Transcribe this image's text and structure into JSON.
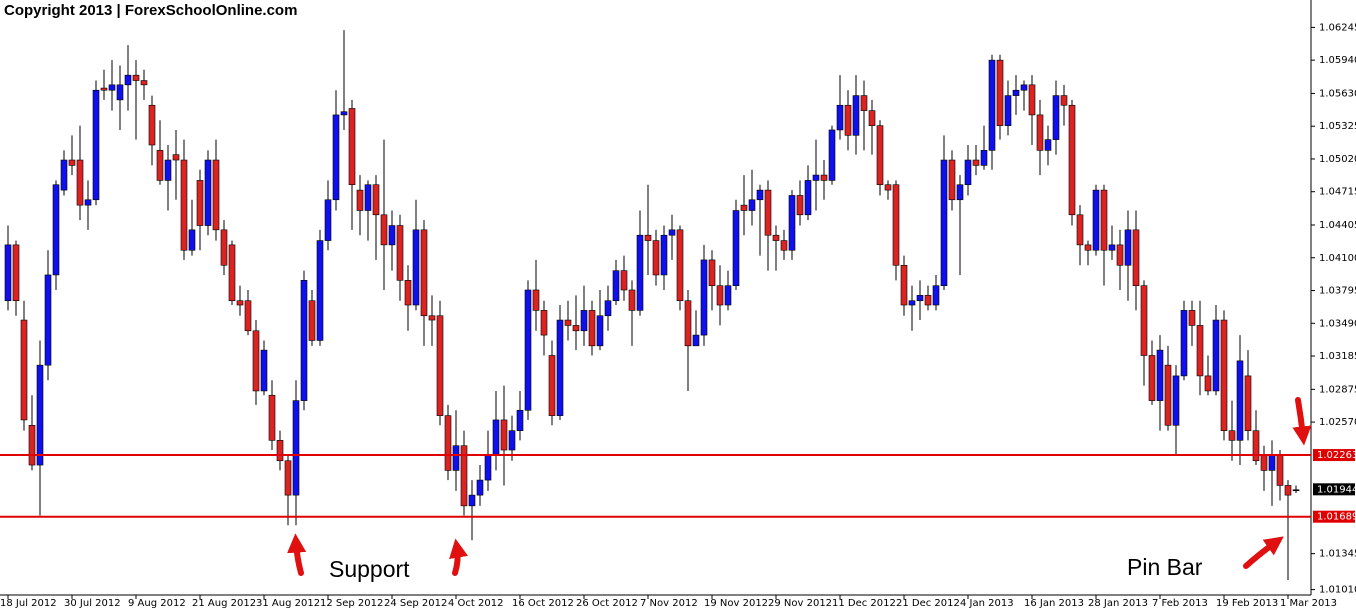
{
  "chart_data": {
    "type": "candlestick",
    "title": "Copyright 2013 | ForexSchoolOnline.com",
    "annotations": [
      "Support",
      "Pin Bar"
    ],
    "bull_color": "#1010ee",
    "bear_color": "#dd2222",
    "level_color": "#e00000",
    "ylim": [
      1.0096,
      1.065
    ],
    "yticks": [
      1.06245,
      {
        "value": 1.0594,
        "label": "1.05940"
      },
      {
        "value": 1.0563,
        "label": "1.05630"
      },
      1.05325,
      {
        "value": 1.0502,
        "label": "1.05020"
      },
      1.04715,
      1.04405,
      {
        "value": 1.041,
        "label": "1.04100"
      },
      1.03795,
      {
        "value": 1.0349,
        "label": "1.03490"
      },
      1.03185,
      1.02875,
      {
        "value": 1.0257,
        "label": "1.02570"
      },
      1.01345,
      {
        "value": 1.0101,
        "label": "1.01010"
      }
    ],
    "levels": [
      1.02263,
      1.01689
    ],
    "last_price": 1.01944,
    "categories": [
      "18 Jul 2012",
      null,
      null,
      null,
      null,
      null,
      null,
      null,
      "30 Jul 2012",
      null,
      null,
      null,
      null,
      null,
      null,
      null,
      "9 Aug 2012",
      null,
      null,
      null,
      null,
      null,
      null,
      null,
      "21 Aug 2012",
      null,
      null,
      null,
      null,
      null,
      null,
      null,
      "31 Aug 2012",
      null,
      null,
      null,
      null,
      null,
      null,
      null,
      "12 Sep 2012",
      null,
      null,
      null,
      null,
      null,
      null,
      null,
      "24 Sep 2012",
      null,
      null,
      null,
      null,
      null,
      null,
      null,
      "4 Oct 2012",
      null,
      null,
      null,
      null,
      null,
      null,
      null,
      "16 Oct 2012",
      null,
      null,
      null,
      null,
      null,
      null,
      null,
      "26 Oct 2012",
      null,
      null,
      null,
      null,
      null,
      null,
      null,
      "7 Nov 2012",
      null,
      null,
      null,
      null,
      null,
      null,
      null,
      "19 Nov 2012",
      null,
      null,
      null,
      null,
      null,
      null,
      null,
      "29 Nov 2012",
      null,
      null,
      null,
      null,
      null,
      null,
      null,
      "11 Dec 2012",
      null,
      null,
      null,
      null,
      null,
      null,
      null,
      "21 Dec 2012",
      null,
      null,
      null,
      null,
      null,
      null,
      null,
      "4 Jan 2013",
      null,
      null,
      null,
      null,
      null,
      null,
      null,
      "16 Jan 2013",
      null,
      null,
      null,
      null,
      null,
      null,
      null,
      "28 Jan 2013",
      null,
      null,
      null,
      null,
      null,
      null,
      null,
      "7 Feb 2013",
      null,
      null,
      null,
      null,
      null,
      null,
      null,
      "19 Feb 2013",
      null,
      null,
      null,
      null,
      null,
      null,
      null,
      "1 Mar 2013",
      null
    ],
    "open": [
      1.037,
      1.0422,
      1.0352,
      1.0254,
      1.0217,
      1.031,
      1.0394,
      1.0473,
      1.0501,
      1.0501,
      1.0459,
      1.0464,
      1.0568,
      1.0566,
      1.0557,
      1.0571,
      1.058,
      1.0575,
      1.0552,
      1.051,
      1.0482,
      1.0506,
      1.0501,
      1.0417,
      1.0482,
      1.044,
      1.0501,
      1.0436,
      1.0422,
      1.037,
      1.037,
      1.0342,
      1.0286,
      1.0282,
      1.024,
      1.0221,
      1.0189,
      1.0277,
      1.037,
      1.0333,
      1.0426,
      1.0464,
      1.0543,
      1.0549,
      1.0473,
      1.0454,
      1.0478,
      1.045,
      1.0422,
      1.044,
      1.0389,
      1.0366,
      1.0436,
      1.0356,
      1.0356,
      1.0263,
      1.0212,
      1.0235,
      1.0179,
      1.0189,
      1.0203,
      1.0226,
      1.0259,
      1.0231,
      1.0249,
      1.0268,
      1.038,
      1.0361,
      1.0319,
      1.0263,
      1.0352,
      1.0347,
      1.0342,
      1.0361,
      1.0328,
      1.0356,
      1.037,
      1.0398,
      1.038,
      1.0361,
      1.0431,
      1.0426,
      1.0394,
      1.0431,
      1.0436,
      1.037,
      1.0328,
      1.0338,
      1.0408,
      1.0384,
      1.0366,
      1.0384,
      1.0459,
      1.0454,
      1.0464,
      1.0473,
      1.0431,
      1.0426,
      1.0417,
      1.0468,
      1.045,
      1.0482,
      1.0487,
      1.0482,
      1.0529,
      1.0552,
      1.0524,
      1.0561,
      1.0547,
      1.0533,
      1.0478,
      1.0478,
      1.0403,
      1.0366,
      1.037,
      1.0375,
      1.0366,
      1.0384,
      1.0501,
      1.0464,
      1.0478,
      1.0501,
      1.0496,
      1.051,
      1.0594,
      1.0533,
      1.0561,
      1.0566,
      1.0571,
      1.0543,
      1.051,
      1.052,
      1.0561,
      1.0552,
      1.045,
      1.0422,
      1.0417,
      1.0473,
      1.0417,
      1.0422,
      1.0403,
      1.0436,
      1.0384,
      1.0319,
      1.0277,
      1.031,
      1.0254,
      1.03,
      1.0361,
      1.0347,
      1.03,
      1.0286,
      1.0352,
      1.0249,
      1.024,
      1.03,
      1.0249,
      1.0226,
      1.0212,
      1.0226,
      1.0198,
      1.0194
    ],
    "high": [
      1.044,
      1.0426,
      1.037,
      1.0282,
      1.0333,
      1.0417,
      1.0482,
      1.051,
      1.0524,
      1.0533,
      1.0482,
      1.0575,
      1.0585,
      1.0594,
      1.0589,
      1.0608,
      1.0594,
      1.0585,
      1.0561,
      1.0538,
      1.0515,
      1.0529,
      1.052,
      1.0464,
      1.0492,
      1.051,
      1.052,
      1.0445,
      1.0426,
      1.0384,
      1.038,
      1.0352,
      1.0333,
      1.0296,
      1.0249,
      1.0226,
      1.0296,
      1.0398,
      1.038,
      1.0436,
      1.0482,
      1.0566,
      1.0622,
      1.0557,
      1.0487,
      1.0482,
      1.0487,
      1.052,
      1.0454,
      1.045,
      1.0403,
      1.0464,
      1.0445,
      1.0375,
      1.037,
      1.0273,
      1.0268,
      1.0249,
      1.0203,
      1.0217,
      1.0249,
      1.0286,
      1.0291,
      1.0263,
      1.0286,
      1.0389,
      1.0408,
      1.037,
      1.0333,
      1.0366,
      1.037,
      1.0375,
      1.0384,
      1.037,
      1.038,
      1.0384,
      1.0408,
      1.0412,
      1.0389,
      1.0454,
      1.0478,
      1.0436,
      1.044,
      1.045,
      1.044,
      1.038,
      1.0361,
      1.0422,
      1.0417,
      1.0403,
      1.0398,
      1.0464,
      1.0487,
      1.0492,
      1.0478,
      1.0482,
      1.044,
      1.0436,
      1.0473,
      1.0482,
      1.0496,
      1.052,
      1.0501,
      1.0533,
      1.058,
      1.0566,
      1.058,
      1.0575,
      1.0557,
      1.0538,
      1.0482,
      1.0482,
      1.0412,
      1.0384,
      1.0389,
      1.0384,
      1.0394,
      1.0524,
      1.051,
      1.0487,
      1.0515,
      1.0515,
      1.0533,
      1.0599,
      1.0599,
      1.0575,
      1.058,
      1.0575,
      1.058,
      1.0557,
      1.0533,
      1.0575,
      1.0571,
      1.0557,
      1.0459,
      1.0426,
      1.0478,
      1.0478,
      1.044,
      1.0436,
      1.0454,
      1.0454,
      1.0389,
      1.0333,
      1.0338,
      1.0328,
      1.031,
      1.037,
      1.037,
      1.037,
      1.0319,
      1.0366,
      1.0361,
      1.0277,
      1.0338,
      1.0324,
      1.0268,
      1.0235,
      1.024,
      1.0231,
      1.0203,
      1.0198
    ],
    "low": [
      1.0361,
      1.0356,
      1.0249,
      1.0212,
      1.017,
      1.0296,
      1.038,
      1.0468,
      1.0487,
      1.0445,
      1.0436,
      1.0459,
      1.0557,
      1.0547,
      1.0529,
      1.0547,
      1.052,
      1.0557,
      1.0496,
      1.0478,
      1.0454,
      1.0464,
      1.0408,
      1.0412,
      1.0417,
      1.0431,
      1.0426,
      1.0394,
      1.0366,
      1.0356,
      1.0338,
      1.0273,
      1.0282,
      1.0231,
      1.0212,
      1.0161,
      1.0161,
      1.0268,
      1.0328,
      1.0328,
      1.0417,
      1.0454,
      1.0529,
      1.0436,
      1.0431,
      1.0426,
      1.0408,
      1.038,
      1.0398,
      1.037,
      1.0342,
      1.0361,
      1.0328,
      1.0328,
      1.0254,
      1.0203,
      1.0193,
      1.017,
      1.0147,
      1.0179,
      1.0193,
      1.0212,
      1.0198,
      1.0221,
      1.024,
      1.0259,
      1.0342,
      1.0319,
      1.0254,
      1.0259,
      1.0333,
      1.0324,
      1.0328,
      1.0319,
      1.0324,
      1.0342,
      1.0366,
      1.037,
      1.0328,
      1.0356,
      1.0394,
      1.0384,
      1.038,
      1.0408,
      1.0361,
      1.0286,
      1.0328,
      1.0328,
      1.0361,
      1.0347,
      1.0361,
      1.038,
      1.0431,
      1.044,
      1.0412,
      1.0398,
      1.0398,
      1.0408,
      1.0408,
      1.044,
      1.0445,
      1.0454,
      1.0464,
      1.0478,
      1.052,
      1.051,
      1.0506,
      1.051,
      1.0506,
      1.0468,
      1.0464,
      1.0389,
      1.0356,
      1.0342,
      1.0352,
      1.0361,
      1.0361,
      1.038,
      1.0454,
      1.0394,
      1.0468,
      1.0487,
      1.0492,
      1.0492,
      1.052,
      1.0524,
      1.0543,
      1.0547,
      1.0515,
      1.0487,
      1.0496,
      1.0506,
      1.0533,
      1.044,
      1.0403,
      1.0403,
      1.0412,
      1.0384,
      1.0408,
      1.038,
      1.037,
      1.0361,
      1.0291,
      1.0273,
      1.0249,
      1.0249,
      1.0226,
      1.0296,
      1.0328,
      1.0282,
      1.0282,
      1.0282,
      1.024,
      1.0221,
      1.0217,
      1.024,
      1.0217,
      1.0193,
      1.0179,
      1.0184,
      1.011,
      1.0191
    ],
    "close": [
      1.0422,
      1.037,
      1.0259,
      1.0217,
      1.031,
      1.0394,
      1.0478,
      1.0501,
      1.0496,
      1.0459,
      1.0464,
      1.0566,
      1.0566,
      1.0571,
      1.0571,
      1.058,
      1.0575,
      1.0571,
      1.0515,
      1.0482,
      1.0501,
      1.0501,
      1.0417,
      1.0436,
      1.044,
      1.0501,
      1.0436,
      1.0403,
      1.037,
      1.0366,
      1.0342,
      1.0286,
      1.0324,
      1.024,
      1.0221,
      1.0189,
      1.0277,
      1.0389,
      1.0333,
      1.0426,
      1.0464,
      1.0543,
      1.0546,
      1.0478,
      1.0454,
      1.0478,
      1.045,
      1.0422,
      1.044,
      1.0389,
      1.0366,
      1.0436,
      1.0356,
      1.0352,
      1.0263,
      1.0212,
      1.0235,
      1.0179,
      1.0189,
      1.0203,
      1.0226,
      1.0259,
      1.0231,
      1.0249,
      1.0268,
      1.038,
      1.0361,
      1.0338,
      1.0263,
      1.0352,
      1.0347,
      1.0342,
      1.0361,
      1.0328,
      1.0356,
      1.037,
      1.0398,
      1.038,
      1.0361,
      1.0431,
      1.0426,
      1.0394,
      1.0431,
      1.0436,
      1.037,
      1.0328,
      1.0338,
      1.0408,
      1.0384,
      1.0366,
      1.0384,
      1.0454,
      1.0454,
      1.0464,
      1.0473,
      1.0431,
      1.0426,
      1.0417,
      1.0468,
      1.045,
      1.0482,
      1.0487,
      1.0482,
      1.0529,
      1.0552,
      1.0524,
      1.0561,
      1.0547,
      1.0533,
      1.0478,
      1.0473,
      1.0403,
      1.0366,
      1.037,
      1.0375,
      1.0366,
      1.0384,
      1.0501,
      1.0464,
      1.0478,
      1.0501,
      1.0496,
      1.051,
      1.0594,
      1.0533,
      1.0561,
      1.0566,
      1.0571,
      1.0543,
      1.051,
      1.052,
      1.0561,
      1.0552,
      1.045,
      1.0422,
      1.0417,
      1.0473,
      1.0417,
      1.0422,
      1.0403,
      1.0436,
      1.0384,
      1.0319,
      1.0277,
      1.0324,
      1.0254,
      1.03,
      1.0361,
      1.0347,
      1.03,
      1.0286,
      1.0352,
      1.0249,
      1.024,
      1.0314,
      1.0249,
      1.0221,
      1.0212,
      1.0226,
      1.0198,
      1.0189,
      1.0194
    ]
  }
}
